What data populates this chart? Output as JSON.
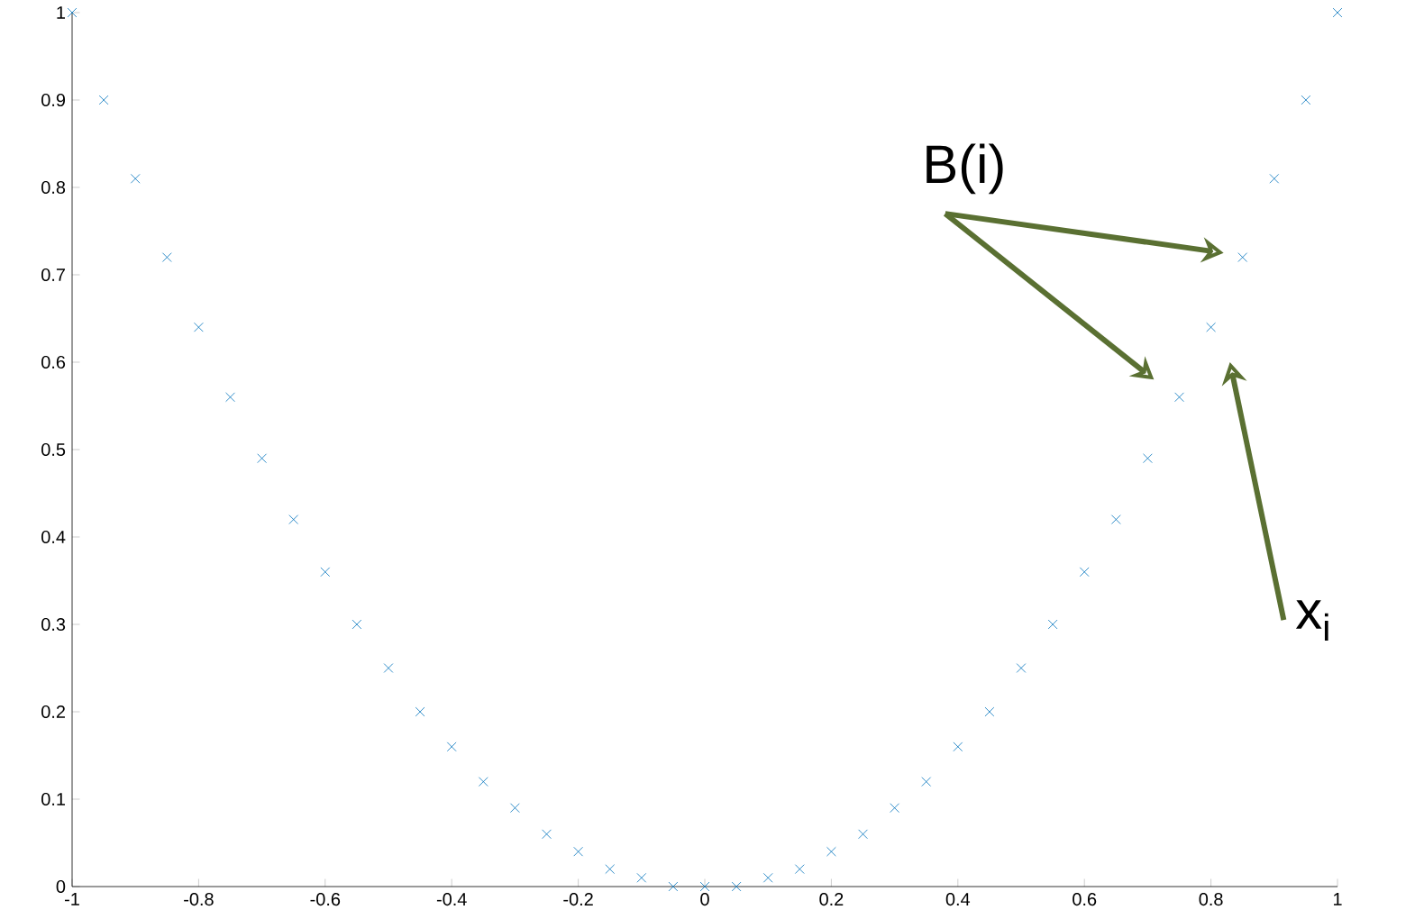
{
  "chart_data": {
    "type": "scatter",
    "marker": "cross",
    "color": "#0072bd",
    "x": [
      -1,
      -0.95,
      -0.9,
      -0.85,
      -0.8,
      -0.75,
      -0.7,
      -0.65,
      -0.6,
      -0.55,
      -0.5,
      -0.45,
      -0.4,
      -0.35,
      -0.3,
      -0.25,
      -0.2,
      -0.15,
      -0.1,
      -0.05,
      0,
      0.05,
      0.1,
      0.15,
      0.2,
      0.25,
      0.3,
      0.35,
      0.4,
      0.45,
      0.5,
      0.55,
      0.6,
      0.65,
      0.7,
      0.75,
      0.8,
      0.85,
      0.9,
      0.95,
      1
    ],
    "values": [
      1,
      0.9,
      0.81,
      0.72,
      0.64,
      0.56,
      0.49,
      0.42,
      0.36,
      0.3,
      0.25,
      0.2,
      0.16,
      0.12,
      0.09,
      0.06,
      0.04,
      0.02,
      0.01,
      0,
      0,
      0,
      0.01,
      0.02,
      0.04,
      0.06,
      0.09,
      0.12,
      0.16,
      0.2,
      0.25,
      0.3,
      0.36,
      0.42,
      0.49,
      0.56,
      0.64,
      0.72,
      0.81,
      0.9,
      1
    ],
    "xlim": [
      -1,
      1
    ],
    "xticks": [
      -1,
      -0.8,
      -0.6,
      -0.4,
      -0.2,
      0,
      0.2,
      0.4,
      0.6,
      0.8,
      1
    ],
    "ylim": [
      0,
      1
    ],
    "yticks": [
      0,
      0.1,
      0.2,
      0.3,
      0.4,
      0.5,
      0.6,
      0.7,
      0.8,
      0.9,
      1
    ],
    "grid": false,
    "annotations": [
      "B(i)",
      "x$_{i}$"
    ]
  }
}
